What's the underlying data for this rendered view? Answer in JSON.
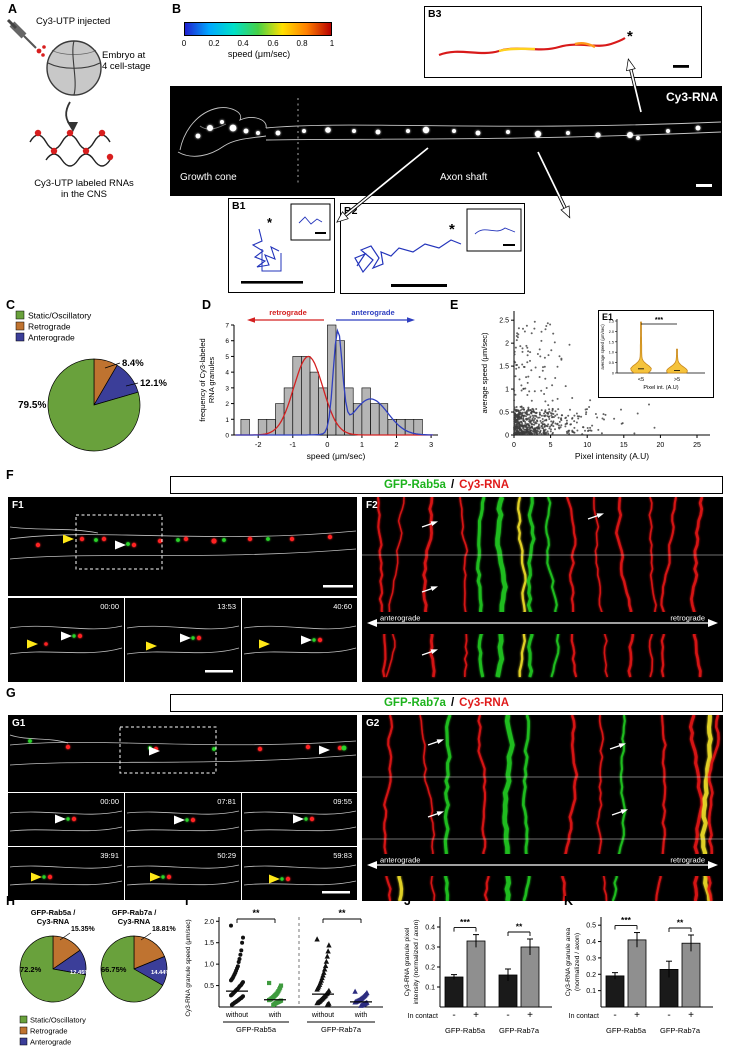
{
  "figure": {
    "description": "Multi-panel figure: Cy3-UTP labeled RNA transport in axons and association with Rab5a/Rab7a endosomes",
    "panel_labels": {
      "A": "A",
      "B": "B",
      "B1": "B1",
      "B2": "B2",
      "B3": "B3",
      "C": "C",
      "D": "D",
      "E": "E",
      "E1": "E1",
      "F": "F",
      "F1": "F1",
      "F2": "F2",
      "G": "G",
      "G1": "G1",
      "G2": "G2",
      "H": "H",
      "I": "I",
      "J": "J",
      "K": "K"
    }
  },
  "colors": {
    "static_green": "#69a13c",
    "retrograde_orange": "#bf7330",
    "anterograde_blue": "#3b3e99",
    "cy3_red": "#e81616",
    "gfp_green": "#22cc22",
    "overlap_yellow": "#f2e22a",
    "header_gfp_text": "#1db31d",
    "header_cy3_text": "#e01b1b"
  },
  "panelA": {
    "injected": "Cy3-UTP injected",
    "embryo_line1": "Embryo at",
    "embryo_line2": "4 cell-stage",
    "rna_line1": "Cy3-UTP labeled RNAs",
    "rna_line2": "in the CNS"
  },
  "panelB": {
    "colorbar_ticks": [
      "0",
      "0.2",
      "0.4",
      "0.6",
      "0.8",
      "1"
    ],
    "colorbar_label": "speed (μm/sec)",
    "colorbar_gradient": [
      "#2020d0",
      "#00a8ff",
      "#00e0c8",
      "#46d046",
      "#ffe000",
      "#ff8000",
      "#b80000"
    ],
    "image_label": "Cy3-RNA",
    "region_left": "Growth cone",
    "region_right": "Axon shaft",
    "asterisk": "*"
  },
  "panelF": {
    "label_gfp": "GFP-Rab5a",
    "label_sep": "/",
    "label_cy3": "Cy3-RNA",
    "timestamps": [
      "00:00",
      "13:53",
      "40:60"
    ],
    "kymo": {
      "left": "anterograde",
      "right": "retrograde"
    }
  },
  "panelG": {
    "label_gfp": "GFP-Rab7a",
    "label_sep": "/",
    "label_cy3": "Cy3-RNA",
    "timestamps": [
      "00:00",
      "07:81",
      "09:55",
      "39:91",
      "50:29",
      "59:83"
    ],
    "kymo": {
      "left": "anterograde",
      "right": "retrograde"
    }
  },
  "chart_data": [
    {
      "id": "pieC",
      "type": "pie",
      "labels": [
        "Static/Oscillatory",
        "Retrograde",
        "Anterograde"
      ],
      "values": [
        79.5,
        8.4,
        12.1
      ],
      "value_labels": [
        "79.5%",
        "8.4%",
        "12.1%"
      ],
      "colors": [
        "#69a13c",
        "#bf7330",
        "#3b3e99"
      ],
      "slice_order_from_top_clockwise": [
        "Retrograde",
        "Anterograde",
        "Static/Oscillatory"
      ],
      "legend_position": "above-left"
    },
    {
      "id": "histD",
      "type": "bar",
      "subtype": "histogram",
      "xlabel": "speed (μm/sec)",
      "ylabel_lines": [
        "frequency of Cy3-labeled",
        "RNA granules"
      ],
      "xlim": [
        -2.7,
        3.2
      ],
      "ylim": [
        0,
        7
      ],
      "xticks": [
        "-2",
        "-1",
        "0",
        "1",
        "2",
        "3"
      ],
      "yticks": [
        "0",
        "1",
        "2",
        "3",
        "4",
        "5",
        "6",
        "7"
      ],
      "bin_width": 0.25,
      "bin_centers": [
        -2.375,
        -2.125,
        -1.875,
        -1.625,
        -1.375,
        -1.125,
        -0.875,
        -0.625,
        -0.375,
        -0.125,
        0.125,
        0.375,
        0.625,
        0.875,
        1.125,
        1.375,
        1.625,
        1.875,
        2.125,
        2.375,
        2.625
      ],
      "frequencies": [
        1,
        0,
        1,
        1,
        2,
        3,
        5,
        5,
        4,
        3,
        7,
        6,
        3,
        2,
        3,
        2,
        2,
        1,
        1,
        1,
        1
      ],
      "fit_curves": [
        {
          "name": "retrograde",
          "color": "#d42020",
          "components": [
            {
              "amp": 5,
              "mean": -0.55,
              "sd": 0.42
            }
          ]
        },
        {
          "name": "anterograde",
          "color": "#2f3fc0",
          "components": [
            {
              "amp": 6.3,
              "mean": 0.3,
              "sd": 0.13
            },
            {
              "amp": 2.3,
              "mean": 1.25,
              "sd": 0.5
            }
          ]
        }
      ],
      "annotations": [
        {
          "text": "retrograde",
          "color": "#d42020",
          "direction": "left"
        },
        {
          "text": "anterograde",
          "color": "#2f3fc0",
          "direction": "right"
        }
      ]
    },
    {
      "id": "scatterE",
      "type": "scatter",
      "xlabel": "Pixel intensity (A.U)",
      "ylabel": "average speed (μm/sec)",
      "xlim": [
        0,
        25
      ],
      "ylim": [
        0,
        2.5
      ],
      "xticks": [
        "0",
        "5",
        "10",
        "15",
        "20",
        "25"
      ],
      "yticks": [
        "0",
        "0.5",
        "1",
        "1.5",
        "2",
        "2.5"
      ],
      "n_points": 650,
      "seed": 7,
      "pattern": "dense cloud at low pixel intensity (<5 A.U); speeds up to ~2.5 μm/sec occur mainly below 5 A.U; sparse slow points out to 25 A.U"
    },
    {
      "id": "violinE1",
      "type": "violin",
      "sig": "***",
      "categories": [
        "<5",
        ">5"
      ],
      "xlabel": "Pixel int. (A.U)",
      "ylabel": "average speed (μm/sec)",
      "ylim": [
        0,
        2.5
      ],
      "yticks": [
        "0",
        "0.5",
        "1.0",
        "1.5",
        "2.0",
        "2.5"
      ],
      "violins": [
        {
          "category": "<5",
          "max": 2.45,
          "peak": 0.2
        },
        {
          "category": ">5",
          "max": 1.15,
          "peak": 0.12
        }
      ],
      "fill": "#f5c33b"
    },
    {
      "id": "piesH",
      "type": "pie",
      "labels": [
        "Static/Oscillatory",
        "Retrograde",
        "Anterograde"
      ],
      "colors": [
        "#69a13c",
        "#bf7330",
        "#3b3e99"
      ],
      "pies": [
        {
          "title_lines": [
            "GFP-Rab5a /",
            "Cy3-RNA"
          ],
          "values": [
            72.2,
            15.35,
            12.45
          ],
          "value_labels": [
            "72.2%",
            "15.35%",
            "12.45%"
          ]
        },
        {
          "title_lines": [
            "GFP-Rab7a /",
            "Cy3-RNA"
          ],
          "values": [
            66.75,
            18.81,
            14.44
          ],
          "value_labels": [
            "66.75%",
            "18.81%",
            "14.44%"
          ]
        }
      ]
    },
    {
      "id": "dotI",
      "type": "scatter",
      "subtype": "dot-plot",
      "ylabel": "Cy3-RNA granule speed (μm/sec)",
      "ylim": [
        0,
        2.1
      ],
      "yticks": [
        "0.5",
        "1.0",
        "1.5",
        "2.0"
      ],
      "group_labels": [
        "GFP-Rab5a",
        "GFP-Rab7a"
      ],
      "groups": [
        {
          "label": "without",
          "parent": "GFP-Rab5a",
          "marker": "circle",
          "color": "#111111",
          "median": 0.37,
          "values": [
            1.9,
            1.62,
            1.5,
            1.32,
            1.22,
            1.12,
            1.05,
            0.95,
            0.9,
            0.85,
            0.8,
            0.76,
            0.72,
            0.68,
            0.65,
            0.62,
            0.58,
            0.55,
            0.52,
            0.5,
            0.48,
            0.45,
            0.43,
            0.41,
            0.39,
            0.37,
            0.35,
            0.33,
            0.31,
            0.29,
            0.27,
            0.25,
            0.23,
            0.21,
            0.2,
            0.18,
            0.17,
            0.15,
            0.14,
            0.12,
            0.11,
            0.1,
            0.08,
            0.07,
            0.05
          ]
        },
        {
          "label": "with",
          "parent": "GFP-Rab5a",
          "marker": "square",
          "color": "#3f9b3f",
          "median": 0.17,
          "values": [
            0.56,
            0.5,
            0.45,
            0.41,
            0.37,
            0.34,
            0.31,
            0.29,
            0.27,
            0.25,
            0.23,
            0.21,
            0.2,
            0.18,
            0.17,
            0.16,
            0.15,
            0.14,
            0.13,
            0.12,
            0.11,
            0.1,
            0.09,
            0.08,
            0.06,
            0.05
          ]
        },
        {
          "label": "without",
          "parent": "GFP-Rab7a",
          "marker": "triangle",
          "color": "#111111",
          "median": 0.3,
          "values": [
            1.58,
            1.44,
            1.3,
            1.18,
            1.06,
            0.96,
            0.88,
            0.8,
            0.74,
            0.68,
            0.62,
            0.57,
            0.52,
            0.48,
            0.44,
            0.41,
            0.38,
            0.35,
            0.32,
            0.3,
            0.27,
            0.25,
            0.23,
            0.21,
            0.19,
            0.17,
            0.15,
            0.13,
            0.12,
            0.1,
            0.09,
            0.08,
            0.06,
            0.05
          ]
        },
        {
          "label": "with",
          "parent": "GFP-Rab7a",
          "marker": "triangle",
          "color": "#2c2c80",
          "median": 0.12,
          "values": [
            0.36,
            0.33,
            0.3,
            0.28,
            0.26,
            0.24,
            0.22,
            0.2,
            0.19,
            0.17,
            0.16,
            0.15,
            0.14,
            0.13,
            0.12,
            0.11,
            0.1,
            0.09,
            0.08,
            0.07,
            0.06,
            0.05,
            0.04,
            0.03
          ]
        }
      ],
      "significance": [
        {
          "between": [
            0,
            1
          ],
          "text": "**"
        },
        {
          "between": [
            2,
            3
          ],
          "text": "**"
        }
      ]
    },
    {
      "id": "barJ",
      "type": "bar",
      "ylabel_lines": [
        "Cy3-RNA granule pixel",
        "intensity (normalized / axon)"
      ],
      "ylim": [
        0,
        0.45
      ],
      "yticks": [
        "0.1",
        "0.2",
        "0.3",
        "0.4"
      ],
      "categories": [
        "-",
        "+",
        "-",
        "+"
      ],
      "row_label": "In contact",
      "group_labels": [
        "GFP-Rab5a",
        "GFP-Rab7a"
      ],
      "values": [
        0.15,
        0.33,
        0.16,
        0.3
      ],
      "errors": [
        0.012,
        0.032,
        0.03,
        0.04
      ],
      "bar_colors": [
        "#1a1a1a",
        "#8f8f8f",
        "#1a1a1a",
        "#8f8f8f"
      ],
      "significance": [
        "***",
        "**"
      ]
    },
    {
      "id": "barK",
      "type": "bar",
      "ylabel_lines": [
        "Cy3-RNA granule area",
        "(normalized / axon)"
      ],
      "ylim": [
        0,
        0.55
      ],
      "yticks": [
        "0.1",
        "0.2",
        "0.3",
        "0.4",
        "0.5"
      ],
      "categories": [
        "-",
        "+",
        "-",
        "+"
      ],
      "row_label": "In contact",
      "group_labels": [
        "GFP-Rab5a",
        "GFP-Rab7a"
      ],
      "values": [
        0.19,
        0.41,
        0.23,
        0.39
      ],
      "errors": [
        0.02,
        0.045,
        0.05,
        0.05
      ],
      "bar_colors": [
        "#1a1a1a",
        "#8f8f8f",
        "#1a1a1a",
        "#8f8f8f"
      ],
      "significance": [
        "***",
        "**"
      ]
    }
  ]
}
